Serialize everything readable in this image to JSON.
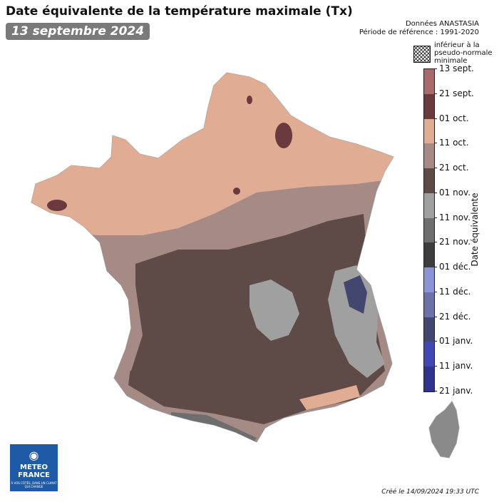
{
  "header": {
    "title": "Date équivalente de la température maximale (Tx)",
    "date": "13 septembre 2024"
  },
  "source": {
    "line1": "Données ANASTASIA",
    "line2": "Période de référence : 1991-2020"
  },
  "hatch_legend": {
    "label": "inférieur à la pseudo-normale minimale"
  },
  "legend": {
    "title": "Date équivalente",
    "ticks": [
      "13 sept.",
      "21 sept.",
      "01 oct.",
      "11 oct.",
      "21 oct.",
      "01 nov.",
      "11 nov.",
      "21 nov.",
      "01 déc.",
      "11 déc.",
      "21 déc.",
      "01 janv.",
      "11 janv.",
      "21 janv."
    ],
    "colors": [
      "#a86a6a",
      "#6b3a3e",
      "#e0ad94",
      "#a58a86",
      "#5e4b48",
      "#a0a0a0",
      "#6e6e6e",
      "#3d3d3d",
      "#8c93d6",
      "#6c72a8",
      "#43466e",
      "#4048b5",
      "#2e3390"
    ]
  },
  "map": {
    "region": "France",
    "corsica": "Corse"
  },
  "logo": {
    "name1": "METEO",
    "name2": "FRANCE",
    "tagline": "À VOS CÔTÉS, DANS UN CLIMAT QUI CHANGE"
  },
  "footer": {
    "created": "Créé le 14/09/2024 19:33 UTC"
  }
}
